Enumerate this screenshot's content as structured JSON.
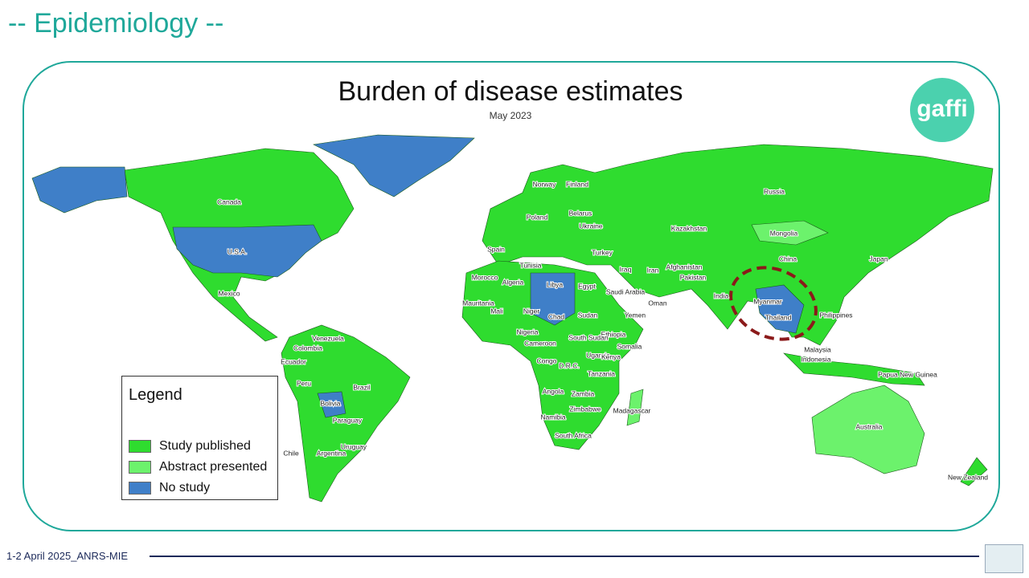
{
  "header": "-- Epidemiology --",
  "map": {
    "title": "Burden of disease estimates",
    "subtitle": "May 2023",
    "logo": "gaffi",
    "countries": [
      "Canada",
      "U.S.A.",
      "Mexico",
      "Colombia",
      "Venezuela",
      "Ecuador",
      "Peru",
      "Brazil",
      "Bolivia",
      "Paraguay",
      "Uruguay",
      "Chile",
      "Argentina",
      "Norway",
      "Finland",
      "Poland",
      "Belarus",
      "Ukraine",
      "Spain",
      "Tunisia",
      "Turkey",
      "Iraq",
      "Morocco",
      "Algeria",
      "Libya",
      "Egypt",
      "Saudi Arabia",
      "Oman",
      "Yemen",
      "Mauritania",
      "Mali",
      "Niger",
      "Chad",
      "Sudan",
      "Ethiopia",
      "Nigeria",
      "Cameroon",
      "South Sudan",
      "Somalia",
      "Uganda",
      "Kenya",
      "Congo",
      "D.R.C.",
      "Tanzania",
      "Angola",
      "Zambia",
      "Zimbabwe",
      "Madagascar",
      "Namibia",
      "South Africa",
      "Russia",
      "Kazakhstan",
      "Mongolia",
      "China",
      "Afghanistan",
      "Iran",
      "Pakistan",
      "India",
      "Myanmar",
      "Thailand",
      "Philippines",
      "Japan",
      "Malaysia",
      "Indonesia",
      "Papua New Guinea",
      "Australia",
      "New Zealand"
    ]
  },
  "legend": {
    "title": "Legend",
    "items": [
      "Study published",
      "Abstract presented",
      "No study"
    ]
  },
  "footer": "1-2 April 2025_ANRS-MIE"
}
